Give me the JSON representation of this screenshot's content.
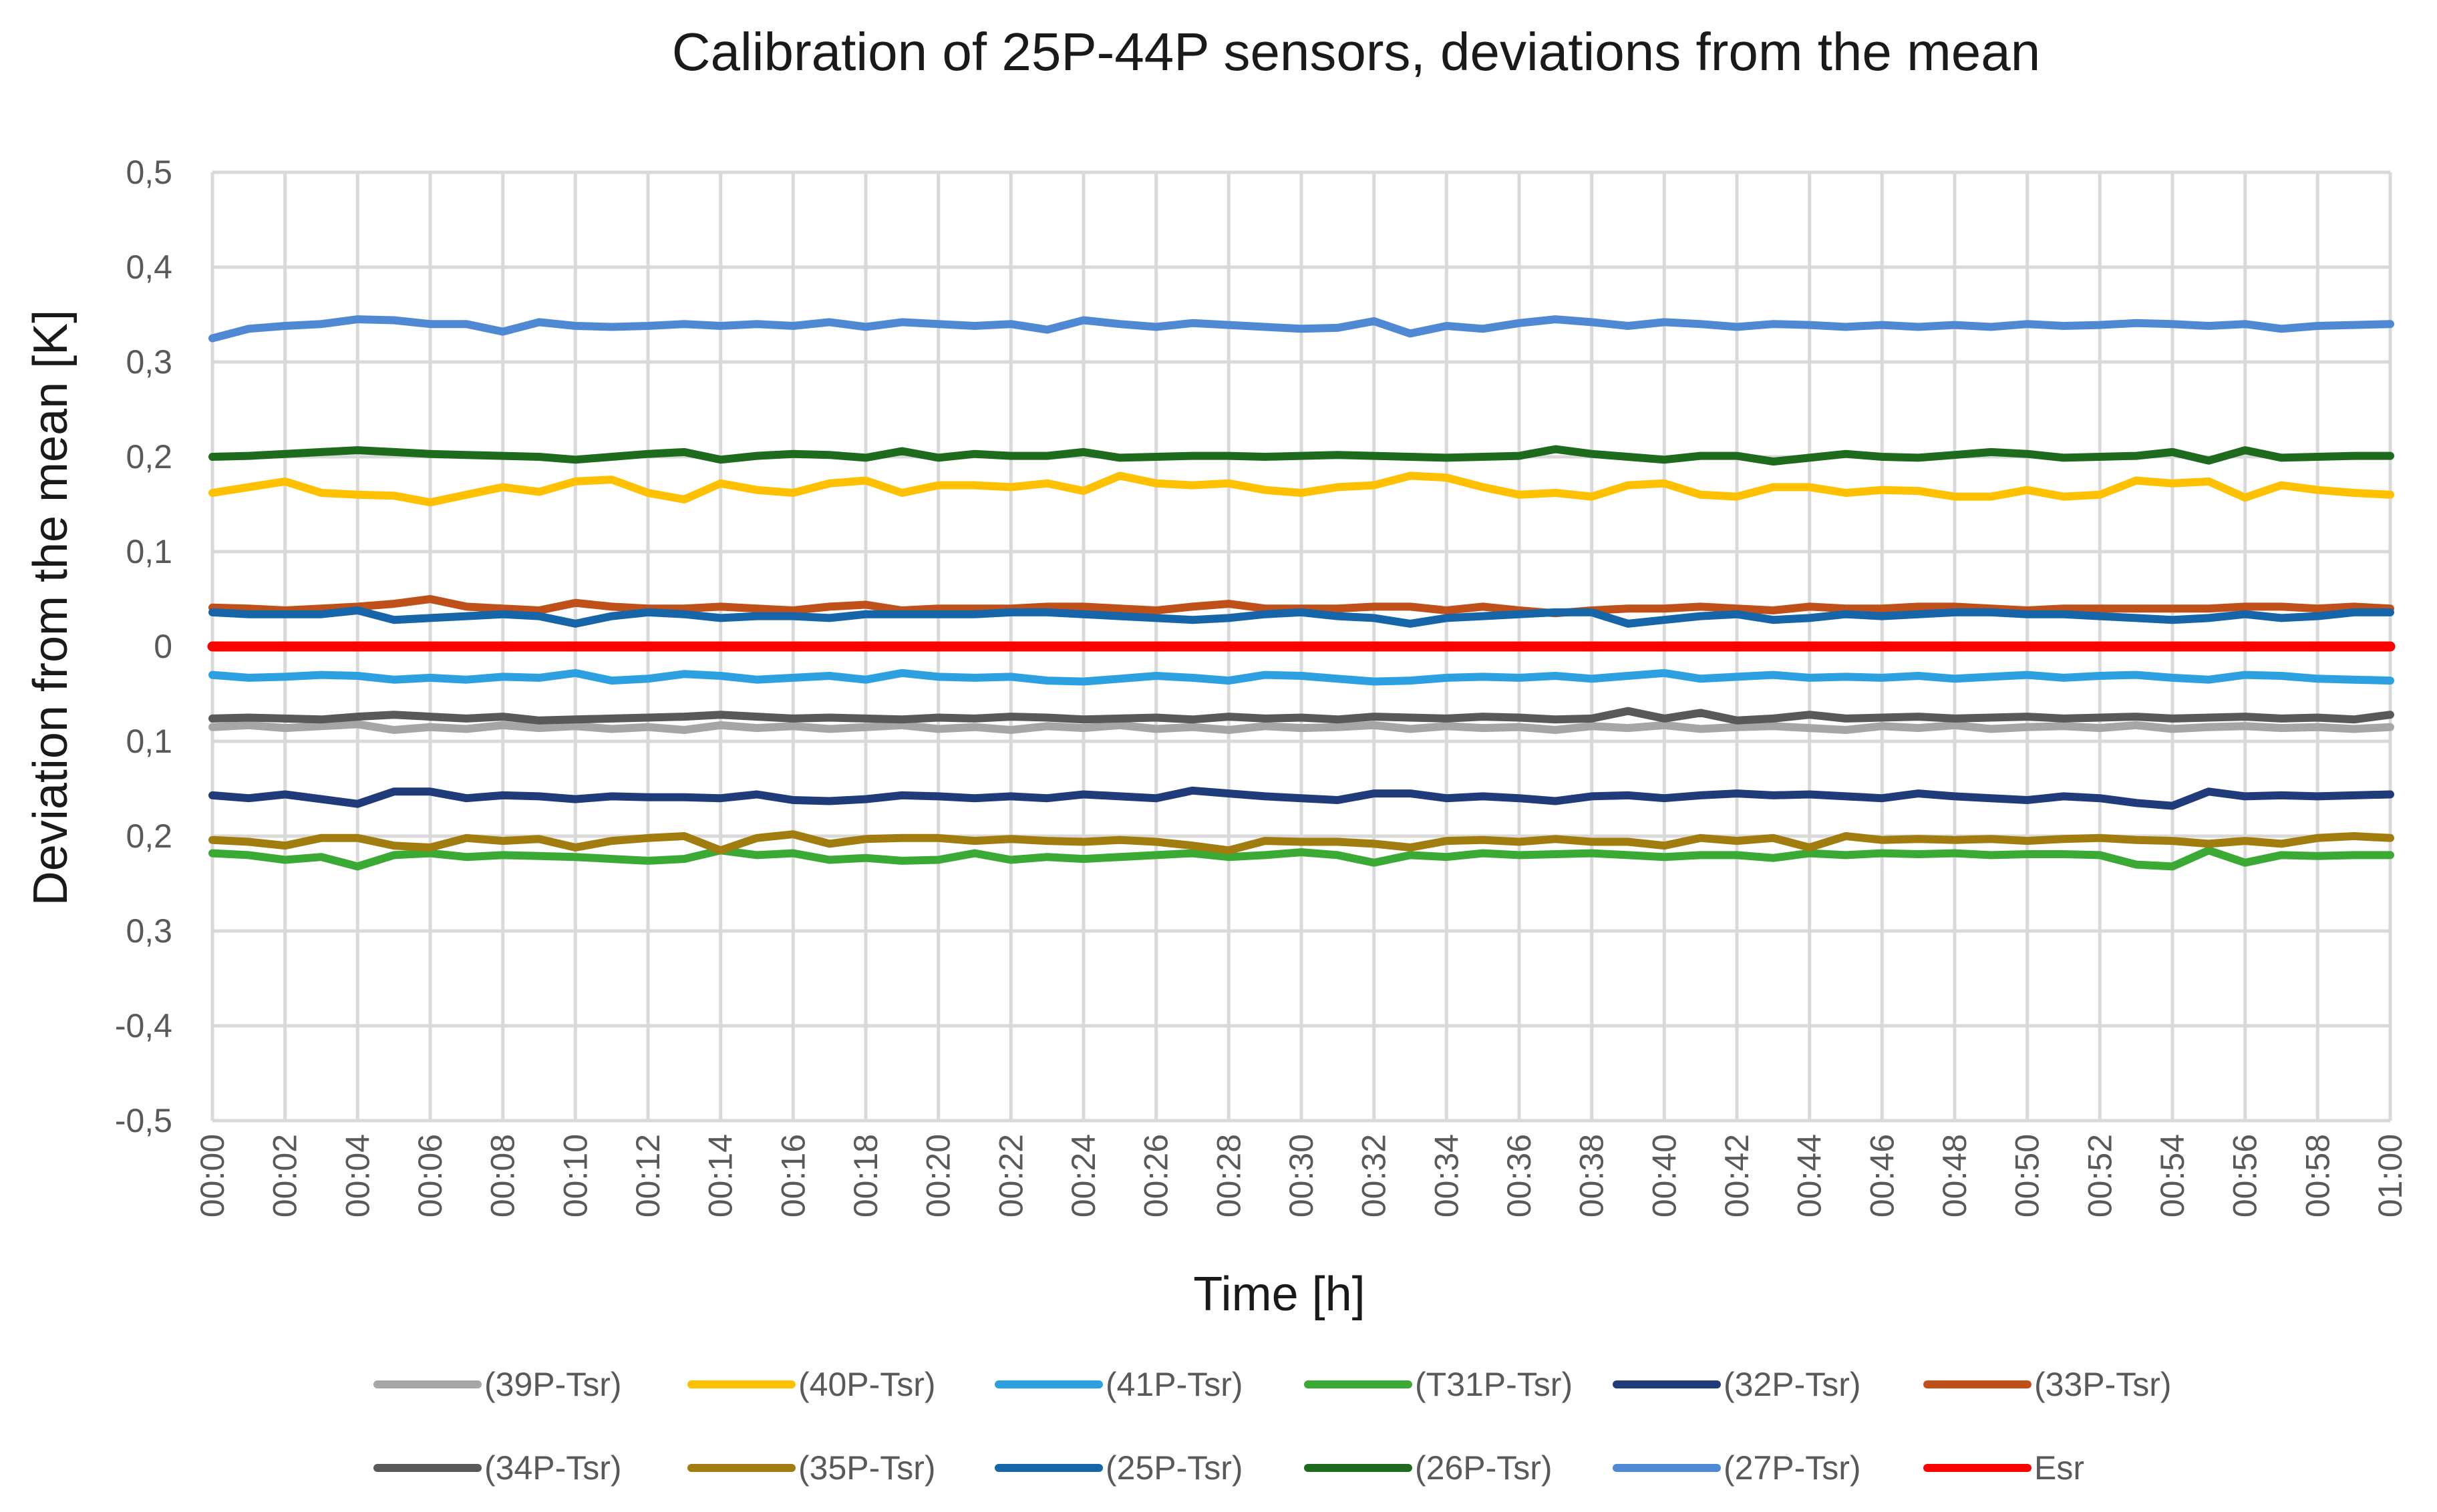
{
  "chart_data": {
    "type": "line",
    "title": "Calibration of 25P-44P sensors, deviations from the mean",
    "xlabel": "Time [h]",
    "ylabel": "Deviation from the mean [K]",
    "ylim": [
      -0.5,
      0.5
    ],
    "grid": true,
    "legend_position": "bottom",
    "yticks": [
      "-0,5",
      "-0,4",
      "0,3",
      "0,2",
      "0,1",
      "0",
      "0,1",
      "0,2",
      "0,3",
      "0,4",
      "0,5"
    ],
    "xticks": [
      "00:00",
      "00:02",
      "00:04",
      "00:06",
      "00:08",
      "00:10",
      "00:12",
      "00:14",
      "00:16",
      "00:18",
      "00:20",
      "00:22",
      "00:24",
      "00:26",
      "00:28",
      "00:30",
      "00:32",
      "00:34",
      "00:36",
      "00:38",
      "00:40",
      "00:42",
      "00:44",
      "00:46",
      "00:48",
      "00:50",
      "00:52",
      "00:54",
      "00:56",
      "00:58",
      "01:00"
    ],
    "x_minutes": [
      0,
      1,
      2,
      3,
      4,
      5,
      6,
      7,
      8,
      9,
      10,
      11,
      12,
      13,
      14,
      15,
      16,
      17,
      18,
      19,
      20,
      21,
      22,
      23,
      24,
      25,
      26,
      27,
      28,
      29,
      30,
      31,
      32,
      33,
      34,
      35,
      36,
      37,
      38,
      39,
      40,
      41,
      42,
      43,
      44,
      45,
      46,
      47,
      48,
      49,
      50,
      51,
      52,
      53,
      54,
      55,
      56,
      57,
      58,
      59,
      60
    ],
    "series": [
      {
        "name": "(39P-Tsr)",
        "color": "#a6a6a6",
        "values": [
          -0.085,
          -0.083,
          -0.086,
          -0.084,
          -0.082,
          -0.088,
          -0.085,
          -0.087,
          -0.083,
          -0.086,
          -0.084,
          -0.087,
          -0.085,
          -0.088,
          -0.083,
          -0.086,
          -0.084,
          -0.087,
          -0.085,
          -0.083,
          -0.087,
          -0.085,
          -0.088,
          -0.084,
          -0.086,
          -0.083,
          -0.087,
          -0.085,
          -0.088,
          -0.084,
          -0.086,
          -0.085,
          -0.083,
          -0.087,
          -0.084,
          -0.086,
          -0.085,
          -0.088,
          -0.084,
          -0.086,
          -0.083,
          -0.087,
          -0.085,
          -0.084,
          -0.086,
          -0.088,
          -0.084,
          -0.086,
          -0.083,
          -0.087,
          -0.085,
          -0.084,
          -0.086,
          -0.083,
          -0.087,
          -0.085,
          -0.084,
          -0.086,
          -0.085,
          -0.087,
          -0.085
        ]
      },
      {
        "name": "(40P-Tsr)",
        "color": "#ffc000",
        "values": [
          0.162,
          0.168,
          0.174,
          0.162,
          0.16,
          0.159,
          0.152,
          0.16,
          0.168,
          0.163,
          0.174,
          0.176,
          0.162,
          0.155,
          0.172,
          0.165,
          0.162,
          0.172,
          0.175,
          0.162,
          0.17,
          0.17,
          0.168,
          0.172,
          0.164,
          0.18,
          0.172,
          0.17,
          0.172,
          0.165,
          0.162,
          0.168,
          0.17,
          0.18,
          0.178,
          0.168,
          0.16,
          0.162,
          0.158,
          0.17,
          0.172,
          0.16,
          0.158,
          0.168,
          0.168,
          0.162,
          0.165,
          0.164,
          0.158,
          0.158,
          0.165,
          0.158,
          0.16,
          0.175,
          0.172,
          0.174,
          0.157,
          0.17,
          0.165,
          0.162,
          0.16
        ]
      },
      {
        "name": "(41P-Tsr)",
        "color": "#2da0e2",
        "values": [
          -0.03,
          -0.033,
          -0.032,
          -0.03,
          -0.031,
          -0.035,
          -0.033,
          -0.035,
          -0.032,
          -0.033,
          -0.028,
          -0.036,
          -0.034,
          -0.029,
          -0.031,
          -0.035,
          -0.033,
          -0.031,
          -0.035,
          -0.028,
          -0.032,
          -0.033,
          -0.032,
          -0.036,
          -0.037,
          -0.034,
          -0.031,
          -0.033,
          -0.036,
          -0.03,
          -0.031,
          -0.034,
          -0.037,
          -0.036,
          -0.033,
          -0.032,
          -0.033,
          -0.031,
          -0.034,
          -0.031,
          -0.028,
          -0.034,
          -0.032,
          -0.03,
          -0.033,
          -0.032,
          -0.033,
          -0.031,
          -0.034,
          -0.032,
          -0.03,
          -0.033,
          -0.031,
          -0.03,
          -0.033,
          -0.035,
          -0.03,
          -0.031,
          -0.034,
          -0.035,
          -0.036
        ]
      },
      {
        "name": "(T31P-Tsr)",
        "color": "#3aaa35",
        "values": [
          -0.218,
          -0.22,
          -0.225,
          -0.222,
          -0.232,
          -0.22,
          -0.218,
          -0.222,
          -0.22,
          -0.221,
          -0.222,
          -0.224,
          -0.226,
          -0.224,
          -0.215,
          -0.22,
          -0.218,
          -0.225,
          -0.223,
          -0.226,
          -0.225,
          -0.218,
          -0.225,
          -0.222,
          -0.224,
          -0.222,
          -0.22,
          -0.218,
          -0.222,
          -0.22,
          -0.217,
          -0.22,
          -0.228,
          -0.22,
          -0.222,
          -0.218,
          -0.22,
          -0.219,
          -0.218,
          -0.22,
          -0.222,
          -0.22,
          -0.22,
          -0.223,
          -0.218,
          -0.22,
          -0.218,
          -0.219,
          -0.218,
          -0.22,
          -0.219,
          -0.219,
          -0.22,
          -0.23,
          -0.232,
          -0.215,
          -0.228,
          -0.22,
          -0.221,
          -0.22,
          -0.22
        ]
      },
      {
        "name": "(32P-Tsr)",
        "color": "#1f3b7a",
        "values": [
          -0.157,
          -0.16,
          -0.156,
          -0.161,
          -0.166,
          -0.153,
          -0.153,
          -0.16,
          -0.157,
          -0.158,
          -0.161,
          -0.158,
          -0.159,
          -0.159,
          -0.16,
          -0.156,
          -0.162,
          -0.163,
          -0.161,
          -0.157,
          -0.158,
          -0.16,
          -0.158,
          -0.16,
          -0.156,
          -0.158,
          -0.16,
          -0.152,
          -0.155,
          -0.158,
          -0.16,
          -0.162,
          -0.155,
          -0.155,
          -0.16,
          -0.158,
          -0.16,
          -0.163,
          -0.158,
          -0.157,
          -0.16,
          -0.157,
          -0.155,
          -0.157,
          -0.156,
          -0.158,
          -0.16,
          -0.155,
          -0.158,
          -0.16,
          -0.162,
          -0.158,
          -0.16,
          -0.165,
          -0.168,
          -0.153,
          -0.158,
          -0.157,
          -0.158,
          -0.157,
          -0.156
        ]
      },
      {
        "name": "(33P-Tsr)",
        "color": "#c0501a",
        "values": [
          0.041,
          0.04,
          0.038,
          0.04,
          0.042,
          0.045,
          0.05,
          0.042,
          0.04,
          0.038,
          0.046,
          0.042,
          0.04,
          0.04,
          0.042,
          0.04,
          0.038,
          0.042,
          0.044,
          0.038,
          0.04,
          0.04,
          0.04,
          0.042,
          0.042,
          0.04,
          0.038,
          0.042,
          0.045,
          0.04,
          0.04,
          0.04,
          0.042,
          0.042,
          0.038,
          0.042,
          0.038,
          0.035,
          0.038,
          0.04,
          0.04,
          0.042,
          0.04,
          0.038,
          0.042,
          0.04,
          0.04,
          0.042,
          0.042,
          0.04,
          0.038,
          0.04,
          0.04,
          0.04,
          0.04,
          0.04,
          0.042,
          0.042,
          0.04,
          0.042,
          0.04
        ]
      },
      {
        "name": "(34P-Tsr)",
        "color": "#595959",
        "values": [
          -0.076,
          -0.075,
          -0.076,
          -0.077,
          -0.074,
          -0.072,
          -0.074,
          -0.076,
          -0.074,
          -0.078,
          -0.077,
          -0.076,
          -0.075,
          -0.074,
          -0.072,
          -0.074,
          -0.076,
          -0.075,
          -0.076,
          -0.077,
          -0.075,
          -0.076,
          -0.074,
          -0.075,
          -0.077,
          -0.076,
          -0.075,
          -0.077,
          -0.074,
          -0.076,
          -0.075,
          -0.077,
          -0.074,
          -0.075,
          -0.076,
          -0.074,
          -0.075,
          -0.077,
          -0.076,
          -0.068,
          -0.076,
          -0.07,
          -0.078,
          -0.076,
          -0.072,
          -0.076,
          -0.075,
          -0.074,
          -0.076,
          -0.075,
          -0.074,
          -0.076,
          -0.075,
          -0.074,
          -0.076,
          -0.075,
          -0.074,
          -0.076,
          -0.075,
          -0.077,
          -0.072
        ]
      },
      {
        "name": "(35P-Tsr)",
        "color": "#a17c0f",
        "values": [
          -0.204,
          -0.206,
          -0.21,
          -0.202,
          -0.202,
          -0.21,
          -0.212,
          -0.202,
          -0.205,
          -0.203,
          -0.212,
          -0.205,
          -0.202,
          -0.2,
          -0.215,
          -0.202,
          -0.198,
          -0.208,
          -0.203,
          -0.202,
          -0.202,
          -0.205,
          -0.203,
          -0.205,
          -0.206,
          -0.204,
          -0.206,
          -0.21,
          -0.215,
          -0.205,
          -0.206,
          -0.206,
          -0.208,
          -0.212,
          -0.205,
          -0.204,
          -0.206,
          -0.203,
          -0.206,
          -0.206,
          -0.21,
          -0.202,
          -0.205,
          -0.202,
          -0.212,
          -0.2,
          -0.204,
          -0.203,
          -0.204,
          -0.203,
          -0.205,
          -0.203,
          -0.202,
          -0.204,
          -0.205,
          -0.208,
          -0.205,
          -0.208,
          -0.202,
          -0.2,
          -0.202
        ]
      },
      {
        "name": "(25P-Tsr)",
        "color": "#1565a8",
        "values": [
          0.036,
          0.034,
          0.034,
          0.034,
          0.038,
          0.028,
          0.03,
          0.032,
          0.034,
          0.032,
          0.024,
          0.032,
          0.036,
          0.034,
          0.03,
          0.032,
          0.032,
          0.03,
          0.034,
          0.034,
          0.034,
          0.034,
          0.036,
          0.036,
          0.034,
          0.032,
          0.03,
          0.028,
          0.03,
          0.034,
          0.036,
          0.032,
          0.03,
          0.024,
          0.03,
          0.032,
          0.034,
          0.036,
          0.036,
          0.024,
          0.028,
          0.032,
          0.034,
          0.028,
          0.03,
          0.034,
          0.032,
          0.034,
          0.036,
          0.036,
          0.034,
          0.034,
          0.032,
          0.03,
          0.028,
          0.03,
          0.034,
          0.03,
          0.032,
          0.036,
          0.036
        ]
      },
      {
        "name": "(26P-Tsr)",
        "color": "#1e6b1e",
        "values": [
          0.2,
          0.201,
          0.203,
          0.205,
          0.207,
          0.205,
          0.203,
          0.202,
          0.201,
          0.2,
          0.197,
          0.2,
          0.203,
          0.205,
          0.197,
          0.201,
          0.203,
          0.202,
          0.199,
          0.206,
          0.199,
          0.203,
          0.201,
          0.201,
          0.205,
          0.199,
          0.2,
          0.201,
          0.201,
          0.2,
          0.201,
          0.202,
          0.201,
          0.2,
          0.199,
          0.2,
          0.201,
          0.208,
          0.203,
          0.2,
          0.197,
          0.201,
          0.201,
          0.195,
          0.199,
          0.203,
          0.2,
          0.199,
          0.202,
          0.205,
          0.203,
          0.199,
          0.2,
          0.201,
          0.205,
          0.196,
          0.207,
          0.199,
          0.2,
          0.201,
          0.201
        ]
      },
      {
        "name": "(27P-Tsr)",
        "color": "#4f89d4",
        "values": [
          0.325,
          0.335,
          0.338,
          0.34,
          0.345,
          0.344,
          0.34,
          0.34,
          0.332,
          0.342,
          0.338,
          0.337,
          0.338,
          0.34,
          0.338,
          0.34,
          0.338,
          0.342,
          0.337,
          0.342,
          0.34,
          0.338,
          0.34,
          0.334,
          0.344,
          0.34,
          0.337,
          0.341,
          0.339,
          0.337,
          0.335,
          0.336,
          0.343,
          0.33,
          0.338,
          0.335,
          0.341,
          0.345,
          0.342,
          0.338,
          0.342,
          0.34,
          0.337,
          0.34,
          0.339,
          0.337,
          0.339,
          0.337,
          0.339,
          0.337,
          0.34,
          0.338,
          0.339,
          0.341,
          0.34,
          0.338,
          0.34,
          0.335,
          0.338,
          0.339,
          0.34
        ]
      },
      {
        "name": "Esr",
        "color": "#ff0000",
        "values": [
          0,
          0,
          0,
          0,
          0,
          0,
          0,
          0,
          0,
          0,
          0,
          0,
          0,
          0,
          0,
          0,
          0,
          0,
          0,
          0,
          0,
          0,
          0,
          0,
          0,
          0,
          0,
          0,
          0,
          0,
          0,
          0,
          0,
          0,
          0,
          0,
          0,
          0,
          0,
          0,
          0,
          0,
          0,
          0,
          0,
          0,
          0,
          0,
          0,
          0,
          0,
          0,
          0,
          0,
          0,
          0,
          0,
          0,
          0,
          0,
          0
        ]
      }
    ]
  }
}
